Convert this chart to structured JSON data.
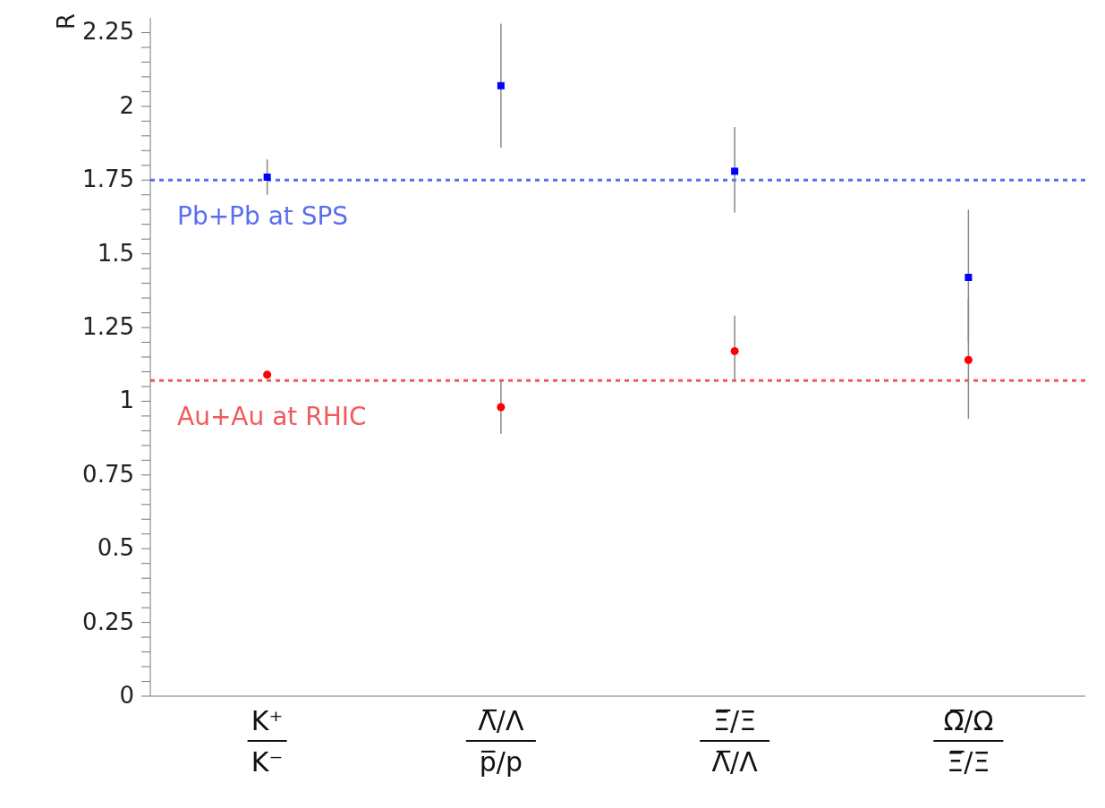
{
  "chart_data": {
    "type": "scatter",
    "ylabel": "R",
    "categories": [
      "K⁺\nK⁻",
      "Λ̅/Λ\np̅/p",
      "Ξ̅/Ξ\nΛ̅/Λ",
      "Ω̅/Ω\nΞ̅/Ξ"
    ],
    "series": [
      {
        "color": "#0000ff",
        "marker": "square",
        "values": [
          1.76,
          2.07,
          1.78,
          1.42
        ],
        "errors": [
          [
            1.7,
            1.82
          ],
          [
            1.86,
            2.28
          ],
          [
            1.64,
            1.93
          ],
          [
            1.2,
            1.65
          ]
        ]
      },
      {
        "color": "#ff0000",
        "marker": "circle",
        "values": [
          1.09,
          0.98,
          1.17,
          1.14
        ],
        "errors": [
          null,
          [
            0.89,
            1.07
          ],
          [
            1.07,
            1.29
          ],
          [
            0.94,
            1.35
          ]
        ]
      }
    ],
    "ref_lines": [
      {
        "axis": "y",
        "value": 1.75,
        "label": "Pb+Pb at SPS",
        "color": "#5a6ef0",
        "line_style": "dotted"
      },
      {
        "axis": "y",
        "value": 1.07,
        "label": "Au+Au at RHIC",
        "color": "#f05a5a",
        "line_style": "dotted"
      }
    ],
    "ylim": [
      0,
      2.3
    ],
    "yticks": [
      0,
      {
        "value": 0.05,
        "label": null
      },
      {
        "value": 0.1,
        "label": null
      },
      {
        "value": 0.15,
        "label": null
      },
      {
        "value": 0.2,
        "label": null
      },
      0.25,
      {
        "value": 0.3,
        "label": null
      },
      {
        "value": 0.35,
        "label": null
      },
      {
        "value": 0.4,
        "label": null
      },
      {
        "value": 0.45,
        "label": null
      },
      0.5,
      {
        "value": 0.55,
        "label": null
      },
      {
        "value": 0.6,
        "label": null
      },
      {
        "value": 0.65,
        "label": null
      },
      {
        "value": 0.7,
        "label": null
      },
      0.75,
      {
        "value": 0.8,
        "label": null
      },
      {
        "value": 0.85,
        "label": null
      },
      {
        "value": 0.9,
        "label": null
      },
      {
        "value": 0.95,
        "label": null
      },
      1,
      {
        "value": 1.05,
        "label": null
      },
      {
        "value": 1.1,
        "label": null
      },
      {
        "value": 1.15,
        "label": null
      },
      {
        "value": 1.2,
        "label": null
      },
      1.25,
      {
        "value": 1.3,
        "label": null
      },
      {
        "value": 1.35,
        "label": null
      },
      {
        "value": 1.4,
        "label": null
      },
      {
        "value": 1.45,
        "label": null
      },
      1.5,
      {
        "value": 1.55,
        "label": null
      },
      {
        "value": 1.6,
        "label": null
      },
      {
        "value": 1.65,
        "label": null
      },
      {
        "value": 1.7,
        "label": null
      },
      1.75,
      {
        "value": 1.8,
        "label": null
      },
      {
        "value": 1.85,
        "label": null
      },
      {
        "value": 1.9,
        "label": null
      },
      {
        "value": 1.95,
        "label": null
      },
      2,
      {
        "value": 2.05,
        "label": null
      },
      {
        "value": 2.1,
        "label": null
      },
      {
        "value": 2.15,
        "label": null
      },
      {
        "value": 2.2,
        "label": null
      },
      2.25
    ],
    "grid": false
  }
}
